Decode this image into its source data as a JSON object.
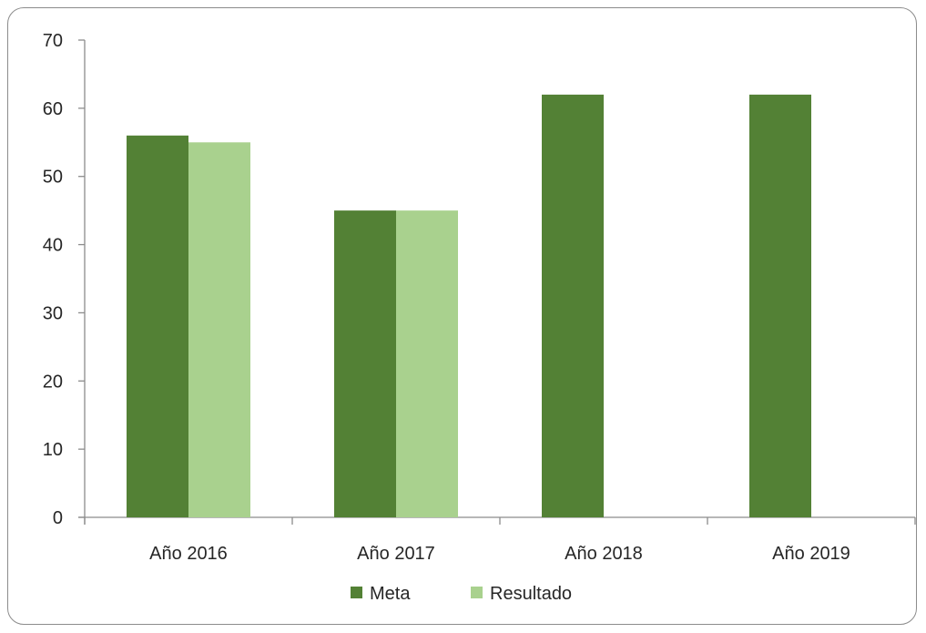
{
  "chart_data": {
    "type": "bar",
    "title": "",
    "xlabel": "",
    "ylabel": "",
    "categories": [
      "Año 2016",
      "Año 2017",
      "Año 2018",
      "Año 2019"
    ],
    "series": [
      {
        "name": "Meta",
        "values": [
          56,
          45,
          62,
          62
        ],
        "color": "#538135"
      },
      {
        "name": "Resultado",
        "values": [
          55,
          45,
          null,
          null
        ],
        "color": "#a9d18e"
      }
    ],
    "ylim": [
      0,
      70
    ],
    "yticks": [
      0,
      10,
      20,
      30,
      40,
      50,
      60,
      70
    ],
    "grid": false,
    "legend": "bottom"
  }
}
